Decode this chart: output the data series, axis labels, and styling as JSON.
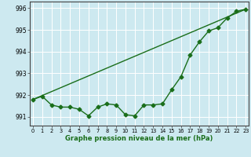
{
  "x": [
    0,
    1,
    2,
    3,
    4,
    5,
    6,
    7,
    8,
    9,
    10,
    11,
    12,
    13,
    14,
    15,
    16,
    17,
    18,
    19,
    20,
    21,
    22,
    23
  ],
  "y_main": [
    991.8,
    991.95,
    991.55,
    991.45,
    991.45,
    991.35,
    991.05,
    991.45,
    991.6,
    991.55,
    991.1,
    991.05,
    991.55,
    991.55,
    991.6,
    992.25,
    992.85,
    993.85,
    994.45,
    994.95,
    995.1,
    995.55,
    995.85,
    995.95
  ],
  "ylim": [
    990.6,
    996.3
  ],
  "xlim": [
    -0.3,
    23.3
  ],
  "yticks": [
    991,
    992,
    993,
    994,
    995,
    996
  ],
  "xtick_labels": [
    "0",
    "1",
    "2",
    "3",
    "4",
    "5",
    "6",
    "7",
    "8",
    "9",
    "10",
    "11",
    "12",
    "13",
    "14",
    "15",
    "16",
    "17",
    "18",
    "19",
    "20",
    "21",
    "22",
    "23"
  ],
  "xlabel": "Graphe pression niveau de la mer (hPa)",
  "line_color": "#1a6e1a",
  "bg_color": "#cde9f0",
  "grid_color": "#b0d8e8",
  "marker_style": "D",
  "marker_size": 2.5,
  "line_width": 1.0
}
